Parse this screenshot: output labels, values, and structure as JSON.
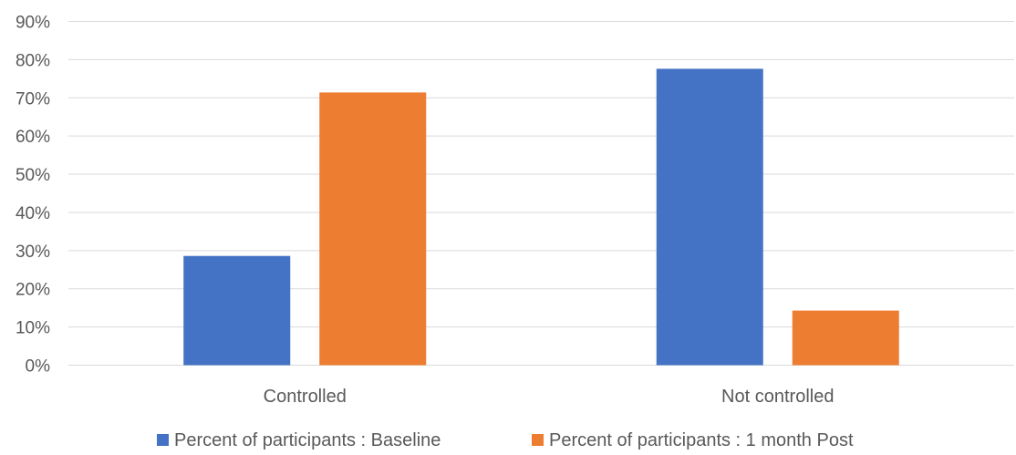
{
  "chart_data": {
    "type": "bar",
    "title": "",
    "xlabel": "",
    "ylabel": "",
    "ylim": [
      0,
      90
    ],
    "y_tick_step": 10,
    "y_tick_labels": [
      "0%",
      "10%",
      "20%",
      "30%",
      "40%",
      "50%",
      "60%",
      "70%",
      "80%",
      "90%"
    ],
    "grid": true,
    "legend_position": "bottom",
    "categories": [
      "Controlled",
      "Not controlled"
    ],
    "series": [
      {
        "name": "Percent of participants : Baseline",
        "color": "#4472c4",
        "values": [
          28.6,
          77.6
        ]
      },
      {
        "name": "Percent of participants : 1 month Post",
        "color": "#ed7d31",
        "values": [
          71.4,
          14.3
        ]
      }
    ]
  }
}
